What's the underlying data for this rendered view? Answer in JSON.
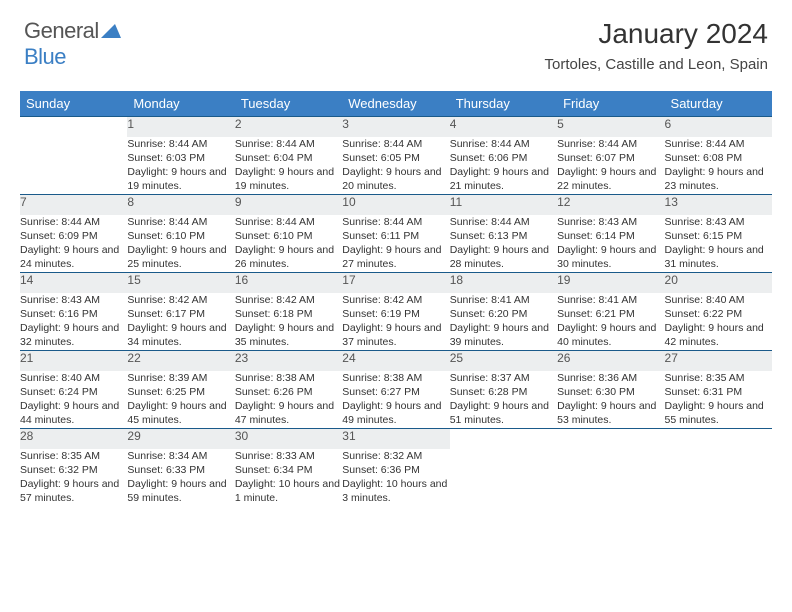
{
  "brand": {
    "part1": "General",
    "part2": "Blue"
  },
  "title": "January 2024",
  "location": "Tortoles, Castille and Leon, Spain",
  "colors": {
    "header_bg": "#3b7fc4",
    "daynum_bg": "#eceeef",
    "row_border": "#1a5a8a",
    "text": "#333333",
    "logo_gray": "#555555",
    "logo_blue": "#3b7fc4"
  },
  "typography": {
    "title_fontsize": 28,
    "location_fontsize": 15,
    "header_fontsize": 13,
    "daynum_fontsize": 12,
    "cell_fontsize": 10.5
  },
  "day_headers": [
    "Sunday",
    "Monday",
    "Tuesday",
    "Wednesday",
    "Thursday",
    "Friday",
    "Saturday"
  ],
  "weeks": [
    {
      "nums": [
        "",
        "1",
        "2",
        "3",
        "4",
        "5",
        "6"
      ],
      "cells": [
        "",
        "Sunrise: 8:44 AM\nSunset: 6:03 PM\nDaylight: 9 hours and 19 minutes.",
        "Sunrise: 8:44 AM\nSunset: 6:04 PM\nDaylight: 9 hours and 19 minutes.",
        "Sunrise: 8:44 AM\nSunset: 6:05 PM\nDaylight: 9 hours and 20 minutes.",
        "Sunrise: 8:44 AM\nSunset: 6:06 PM\nDaylight: 9 hours and 21 minutes.",
        "Sunrise: 8:44 AM\nSunset: 6:07 PM\nDaylight: 9 hours and 22 minutes.",
        "Sunrise: 8:44 AM\nSunset: 6:08 PM\nDaylight: 9 hours and 23 minutes."
      ]
    },
    {
      "nums": [
        "7",
        "8",
        "9",
        "10",
        "11",
        "12",
        "13"
      ],
      "cells": [
        "Sunrise: 8:44 AM\nSunset: 6:09 PM\nDaylight: 9 hours and 24 minutes.",
        "Sunrise: 8:44 AM\nSunset: 6:10 PM\nDaylight: 9 hours and 25 minutes.",
        "Sunrise: 8:44 AM\nSunset: 6:10 PM\nDaylight: 9 hours and 26 minutes.",
        "Sunrise: 8:44 AM\nSunset: 6:11 PM\nDaylight: 9 hours and 27 minutes.",
        "Sunrise: 8:44 AM\nSunset: 6:13 PM\nDaylight: 9 hours and 28 minutes.",
        "Sunrise: 8:43 AM\nSunset: 6:14 PM\nDaylight: 9 hours and 30 minutes.",
        "Sunrise: 8:43 AM\nSunset: 6:15 PM\nDaylight: 9 hours and 31 minutes."
      ]
    },
    {
      "nums": [
        "14",
        "15",
        "16",
        "17",
        "18",
        "19",
        "20"
      ],
      "cells": [
        "Sunrise: 8:43 AM\nSunset: 6:16 PM\nDaylight: 9 hours and 32 minutes.",
        "Sunrise: 8:42 AM\nSunset: 6:17 PM\nDaylight: 9 hours and 34 minutes.",
        "Sunrise: 8:42 AM\nSunset: 6:18 PM\nDaylight: 9 hours and 35 minutes.",
        "Sunrise: 8:42 AM\nSunset: 6:19 PM\nDaylight: 9 hours and 37 minutes.",
        "Sunrise: 8:41 AM\nSunset: 6:20 PM\nDaylight: 9 hours and 39 minutes.",
        "Sunrise: 8:41 AM\nSunset: 6:21 PM\nDaylight: 9 hours and 40 minutes.",
        "Sunrise: 8:40 AM\nSunset: 6:22 PM\nDaylight: 9 hours and 42 minutes."
      ]
    },
    {
      "nums": [
        "21",
        "22",
        "23",
        "24",
        "25",
        "26",
        "27"
      ],
      "cells": [
        "Sunrise: 8:40 AM\nSunset: 6:24 PM\nDaylight: 9 hours and 44 minutes.",
        "Sunrise: 8:39 AM\nSunset: 6:25 PM\nDaylight: 9 hours and 45 minutes.",
        "Sunrise: 8:38 AM\nSunset: 6:26 PM\nDaylight: 9 hours and 47 minutes.",
        "Sunrise: 8:38 AM\nSunset: 6:27 PM\nDaylight: 9 hours and 49 minutes.",
        "Sunrise: 8:37 AM\nSunset: 6:28 PM\nDaylight: 9 hours and 51 minutes.",
        "Sunrise: 8:36 AM\nSunset: 6:30 PM\nDaylight: 9 hours and 53 minutes.",
        "Sunrise: 8:35 AM\nSunset: 6:31 PM\nDaylight: 9 hours and 55 minutes."
      ]
    },
    {
      "nums": [
        "28",
        "29",
        "30",
        "31",
        "",
        "",
        ""
      ],
      "cells": [
        "Sunrise: 8:35 AM\nSunset: 6:32 PM\nDaylight: 9 hours and 57 minutes.",
        "Sunrise: 8:34 AM\nSunset: 6:33 PM\nDaylight: 9 hours and 59 minutes.",
        "Sunrise: 8:33 AM\nSunset: 6:34 PM\nDaylight: 10 hours and 1 minute.",
        "Sunrise: 8:32 AM\nSunset: 6:36 PM\nDaylight: 10 hours and 3 minutes.",
        "",
        "",
        ""
      ]
    }
  ]
}
